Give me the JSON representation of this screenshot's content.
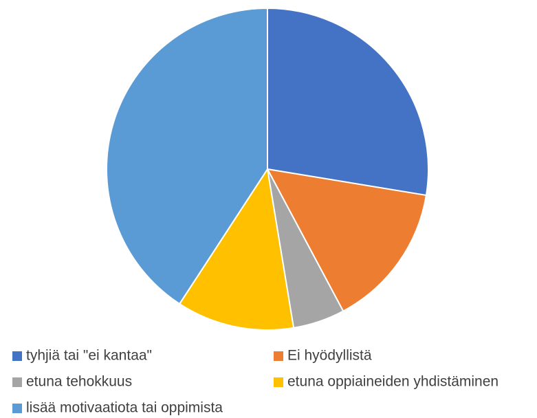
{
  "chart_data": {
    "type": "pie",
    "categories": [
      "tyhjiä  tai \"ei kantaa\"",
      "Ei hyödyllistä",
      "etuna tehokkuus",
      "etuna oppiaineiden yhdistäminen",
      "lisää motivaatiota tai oppimista"
    ],
    "values": [
      27.6,
      14.6,
      5.2,
      11.8,
      40.8
    ],
    "colors": [
      "#4472c4",
      "#ed7d31",
      "#a5a5a5",
      "#ffc000",
      "#5b9bd5"
    ],
    "legend": "bottom"
  }
}
